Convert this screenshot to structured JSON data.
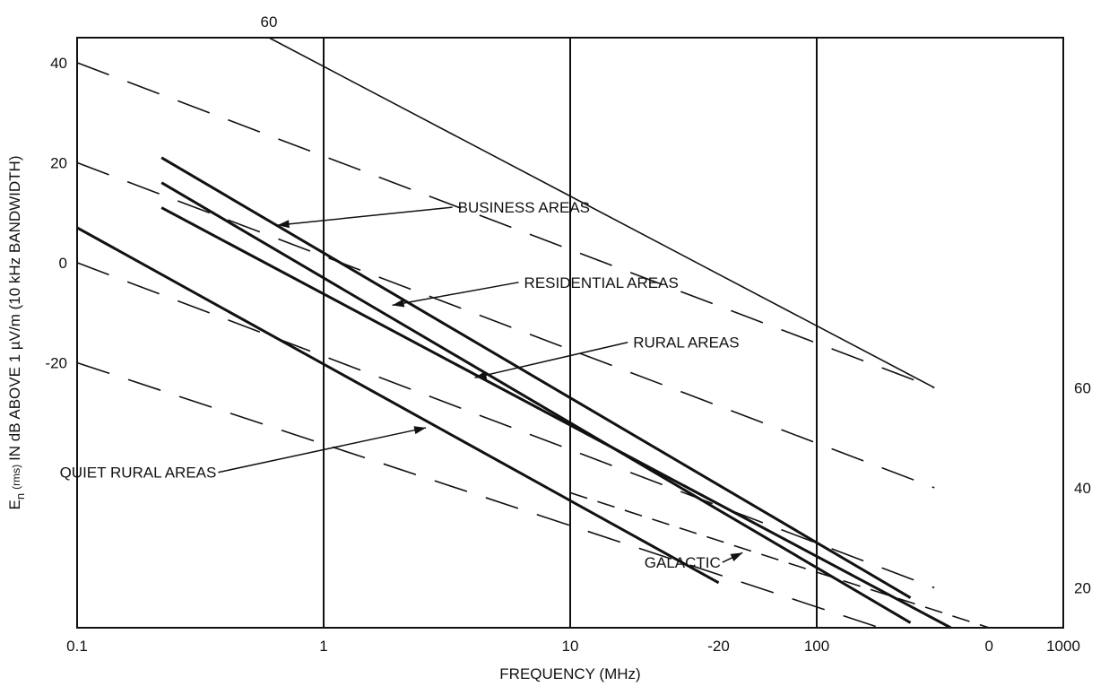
{
  "chart_data": {
    "type": "line",
    "xlabel": "FREQUENCY (MHz)",
    "ylabel": "E_n (rms) IN dB ABOVE 1 µV/m (10 kHz BANDWIDTH)",
    "ylabel_parts": {
      "main": "E",
      "subscript": "n",
      "small": "(rms)",
      "rest": "IN dB ABOVE 1 µV/m (10 kHz BANDWIDTH)"
    },
    "x_scale": "log",
    "xlim": [
      0.1,
      1000
    ],
    "ylim": [
      -73,
      45
    ],
    "grid": "vertical lines at decades",
    "x_ticks": [
      {
        "value": 0.1,
        "label": "0.1"
      },
      {
        "value": 1,
        "label": "1"
      },
      {
        "value": 10,
        "label": "10"
      },
      {
        "value": 100,
        "label": "100"
      },
      {
        "value": 1000,
        "label": "1000"
      }
    ],
    "y_ticks": [
      {
        "value": 40,
        "label": "40"
      },
      {
        "value": 20,
        "label": "20"
      },
      {
        "value": 0,
        "label": "0"
      },
      {
        "value": -20,
        "label": "-20"
      }
    ],
    "series": [
      {
        "name": "BUSINESS AREAS",
        "style": "solid",
        "points": [
          [
            0.22,
            21
          ],
          [
            240,
            -67
          ]
        ]
      },
      {
        "name": "RESIDENTIAL AREAS",
        "style": "solid",
        "points": [
          [
            0.22,
            16
          ],
          [
            240,
            -72
          ]
        ]
      },
      {
        "name": "RURAL AREAS",
        "style": "solid",
        "points": [
          [
            0.22,
            11
          ],
          [
            350,
            -73
          ]
        ]
      },
      {
        "name": "QUIET RURAL AREAS",
        "style": "solid",
        "points": [
          [
            0.1,
            7
          ],
          [
            40,
            -64
          ]
        ]
      },
      {
        "name": "GALACTIC",
        "style": "short-dash",
        "points": [
          [
            10,
            -46
          ],
          [
            500,
            -73
          ]
        ]
      },
      {
        "name": "",
        "style": "solid",
        "points": [
          [
            0.6,
            45
          ],
          [
            300,
            -25
          ]
        ]
      },
      {
        "name": "",
        "style": "long-dash",
        "points": [
          [
            0.1,
            40
          ],
          [
            300,
            -25
          ]
        ]
      },
      {
        "name": "",
        "style": "long-dash",
        "points": [
          [
            0.1,
            20
          ],
          [
            300,
            -45
          ]
        ]
      },
      {
        "name": "",
        "style": "long-dash",
        "points": [
          [
            0.1,
            0
          ],
          [
            300,
            -65
          ]
        ]
      },
      {
        "name": "",
        "style": "long-dash",
        "points": [
          [
            0.1,
            -20
          ],
          [
            180,
            -73
          ]
        ]
      }
    ],
    "outside_labels": [
      {
        "text": "60",
        "position": "top",
        "x": 0.6
      },
      {
        "text": "60",
        "position": "right",
        "y": -25
      },
      {
        "text": "40",
        "position": "right",
        "y": -45
      },
      {
        "text": "20",
        "position": "right",
        "y": -65
      },
      {
        "text": "-20",
        "position": "bottom",
        "x": 40
      },
      {
        "text": "0",
        "position": "bottom",
        "x": 500
      }
    ],
    "annotations": [
      {
        "text": "BUSINESS AREAS",
        "arrow_to": [
          0.65,
          7.5
        ],
        "label_at": [
          3.5,
          10
        ]
      },
      {
        "text": "RESIDENTIAL AREAS",
        "arrow_to": [
          1.9,
          -8.5
        ],
        "label_at": [
          6.5,
          -5
        ]
      },
      {
        "text": "RURAL AREAS",
        "arrow_to": [
          4.1,
          -23
        ],
        "label_at": [
          18,
          -17
        ]
      },
      {
        "text": "QUIET RURAL AREAS",
        "arrow_to": [
          2.6,
          -33
        ],
        "label_at": [
          0.085,
          -43
        ]
      },
      {
        "text": "GALACTIC",
        "arrow_to": [
          50,
          -58
        ],
        "label_at": [
          20,
          -61
        ]
      }
    ]
  }
}
